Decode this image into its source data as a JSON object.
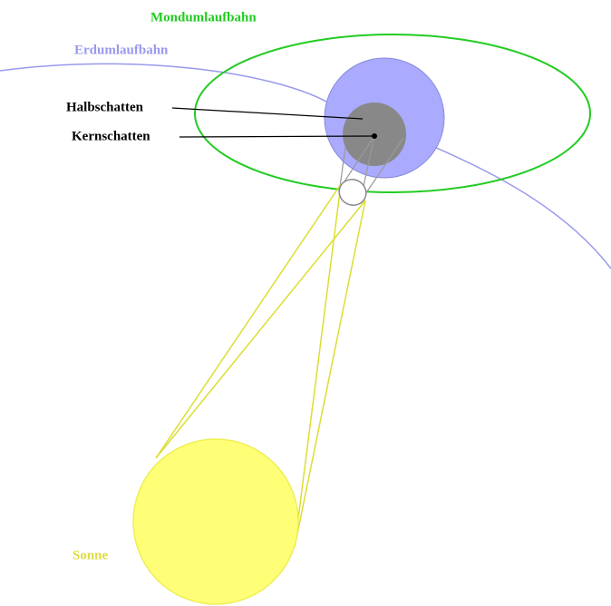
{
  "labels": {
    "moon_orbit": "Mondumlaufbahn",
    "earth_orbit": "Erdumlaufbahn",
    "penumbra": "Halbschatten",
    "umbra": "Kernschatten",
    "sun": "Sonne"
  }
}
